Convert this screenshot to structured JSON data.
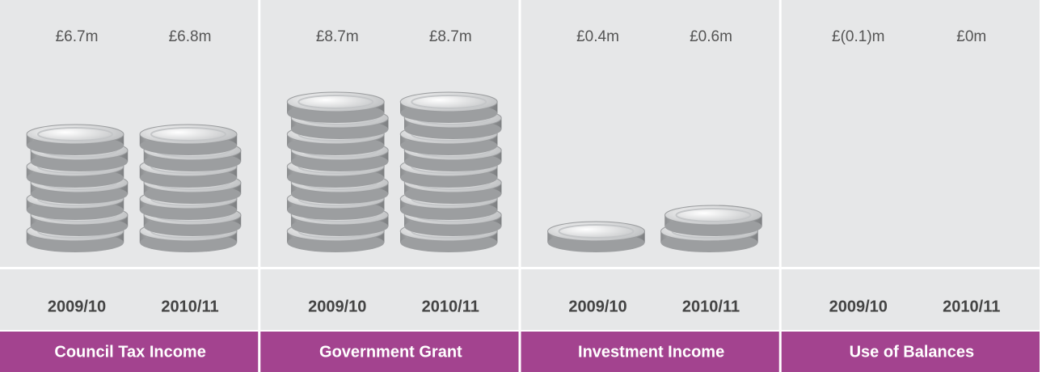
{
  "chart_data": {
    "type": "pictograph",
    "groups": [
      {
        "name": "Council Tax Income",
        "categories": [
          "2009/10",
          "2010/11"
        ],
        "values": [
          6.7,
          6.8
        ],
        "value_labels": [
          "£6.7m",
          "£6.8m"
        ]
      },
      {
        "name": "Government Grant",
        "categories": [
          "2009/10",
          "2010/11"
        ],
        "values": [
          8.7,
          8.7
        ],
        "value_labels": [
          "£8.7m",
          "£8.7m"
        ]
      },
      {
        "name": "Investment Income",
        "categories": [
          "2009/10",
          "2010/11"
        ],
        "values": [
          0.4,
          0.6
        ],
        "value_labels": [
          "£0.4m",
          "£0.6m"
        ]
      },
      {
        "name": "Use of Balances",
        "categories": [
          "2009/10",
          "2010/11"
        ],
        "values": [
          -0.1,
          0
        ],
        "value_labels": [
          "£(0.1)m",
          "£0m"
        ]
      }
    ],
    "color": "#a3438f"
  }
}
